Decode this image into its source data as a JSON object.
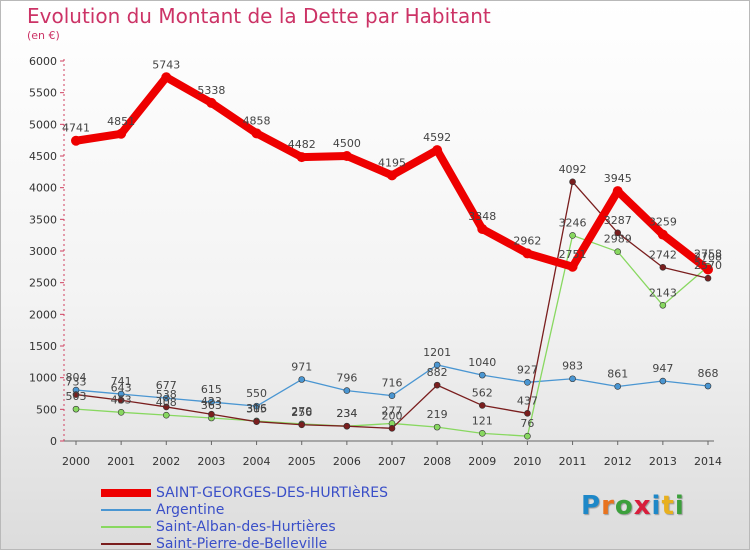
{
  "title": "Evolution du Montant de la Dette par Habitant",
  "subtitle": "(en €)",
  "logo": {
    "text": "Proxiti",
    "letter_colors": [
      "#1e88c8",
      "#e8731e",
      "#3ca03c",
      "#d81e3c",
      "#1e88c8",
      "#e8b01e",
      "#3ca03c"
    ]
  },
  "chart_data": {
    "type": "line",
    "title": "Evolution du Montant de la Dette par Habitant",
    "subtitle": "(en €)",
    "x": [
      "2000",
      "2001",
      "2002",
      "2003",
      "2004",
      "2005",
      "2006",
      "2007",
      "2008",
      "2009",
      "2010",
      "2011",
      "2012",
      "2013",
      "2014"
    ],
    "ylim": [
      0,
      6000
    ],
    "yticks": [
      "0",
      "500",
      "1000",
      "1500",
      "2000",
      "2500",
      "3000",
      "3500",
      "4000",
      "4500",
      "5000",
      "5500",
      "6000"
    ],
    "grid": false,
    "legend_placement": "bottom-left",
    "series": [
      {
        "name": "SAINT-GEORGES-DES-HURTIèRES",
        "color": "#ee0000",
        "values": [
          4741,
          4851,
          5743,
          5338,
          4858,
          4482,
          4500,
          4195,
          4592,
          3348,
          2962,
          2751,
          3945,
          3259,
          2708
        ]
      },
      {
        "name": "Argentine",
        "color": "#4a96d2",
        "values": [
          804,
          741,
          677,
          615,
          550,
          971,
          796,
          716,
          1201,
          1040,
          927,
          983,
          861,
          947,
          868
        ]
      },
      {
        "name": "Saint-Alban-des-Hurtières",
        "color": "#88d860",
        "values": [
          503,
          453,
          408,
          363,
          316,
          270,
          234,
          277,
          219,
          121,
          76,
          3246,
          2989,
          2143,
          2758
        ]
      },
      {
        "name": "Saint-Pierre-de-Belleville",
        "color": "#7a1e1e",
        "values": [
          733,
          643,
          538,
          423,
          305,
          256,
          234,
          200,
          882,
          562,
          437,
          4092,
          3287,
          2742,
          2570
        ]
      }
    ]
  }
}
